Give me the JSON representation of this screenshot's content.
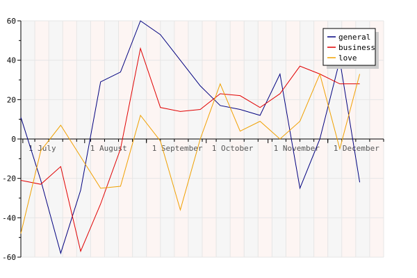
{
  "chart_data": {
    "type": "line",
    "title": "",
    "xlabel": "",
    "ylabel": "",
    "ylim": [
      -60,
      60
    ],
    "yticks": [
      -60,
      -40,
      -20,
      0,
      20,
      40,
      60
    ],
    "x": [
      "2009-06-30",
      "2009-07-07",
      "2009-07-14",
      "2009-07-21",
      "2009-07-28",
      "2009-08-04",
      "2009-08-11",
      "2009-08-18",
      "2009-08-25",
      "2009-09-01",
      "2009-09-08",
      "2009-09-15",
      "2009-09-22",
      "2009-09-29",
      "2009-10-06",
      "2009-10-13",
      "2009-10-20",
      "2009-10-27",
      "2009-11-03",
      "2009-11-10",
      "2009-11-17",
      "2009-11-24",
      "2009-12-01",
      "2009-12-08",
      "2009-12-15",
      "2009-12-22",
      "2009-12-29"
    ],
    "xtick_labels": [
      {
        "date": "2009-07-01",
        "label": "1 July"
      },
      {
        "date": "2009-08-01",
        "label": "1 August"
      },
      {
        "date": "2009-09-01",
        "label": "1 September"
      },
      {
        "date": "2009-10-01",
        "label": "1 October"
      },
      {
        "date": "2009-11-01",
        "label": "1 November"
      },
      {
        "date": "2009-12-01",
        "label": "1 December"
      }
    ],
    "series": [
      {
        "name": "general",
        "color": "#00007f",
        "x": [
          "2009-06-30",
          "2009-07-10",
          "2009-07-20",
          "2009-07-30",
          "2009-08-09",
          "2009-08-19",
          "2009-08-29",
          "2009-09-08",
          "2009-09-18",
          "2009-09-28",
          "2009-10-08",
          "2009-10-18",
          "2009-10-28",
          "2009-11-07",
          "2009-11-17",
          "2009-11-27",
          "2009-12-07",
          "2009-12-17"
        ],
        "values": [
          11,
          -21,
          -58,
          -26,
          29,
          34,
          60,
          53,
          40,
          27,
          17,
          15,
          12,
          33,
          -25,
          0,
          40,
          -22
        ]
      },
      {
        "name": "business",
        "color": "#e00000",
        "x": [
          "2009-06-30",
          "2009-07-10",
          "2009-07-20",
          "2009-07-30",
          "2009-08-09",
          "2009-08-19",
          "2009-08-29",
          "2009-09-08",
          "2009-09-18",
          "2009-09-28",
          "2009-10-08",
          "2009-10-18",
          "2009-10-28",
          "2009-11-07",
          "2009-11-17",
          "2009-11-27",
          "2009-12-07",
          "2009-12-17"
        ],
        "values": [
          -21,
          -23,
          -14,
          -57,
          -33,
          -5,
          46,
          16,
          14,
          15,
          23,
          22,
          16,
          23,
          37,
          33,
          28,
          28
        ]
      },
      {
        "name": "love",
        "color": "#f0a000",
        "x": [
          "2009-06-30",
          "2009-07-10",
          "2009-07-20",
          "2009-07-30",
          "2009-08-09",
          "2009-08-19",
          "2009-08-29",
          "2009-09-08",
          "2009-09-18",
          "2009-09-28",
          "2009-10-08",
          "2009-10-18",
          "2009-10-28",
          "2009-11-07",
          "2009-11-17",
          "2009-11-27",
          "2009-12-07",
          "2009-12-17"
        ],
        "values": [
          -48,
          -6,
          7,
          -9,
          -25,
          -24,
          12,
          -1,
          -36,
          0,
          28,
          4,
          9,
          0,
          9,
          33,
          -5,
          33
        ]
      }
    ],
    "grid": true,
    "legend_position": "top-right",
    "background_colors": [
      "#f6f6f6",
      "#fdf5f3"
    ]
  }
}
